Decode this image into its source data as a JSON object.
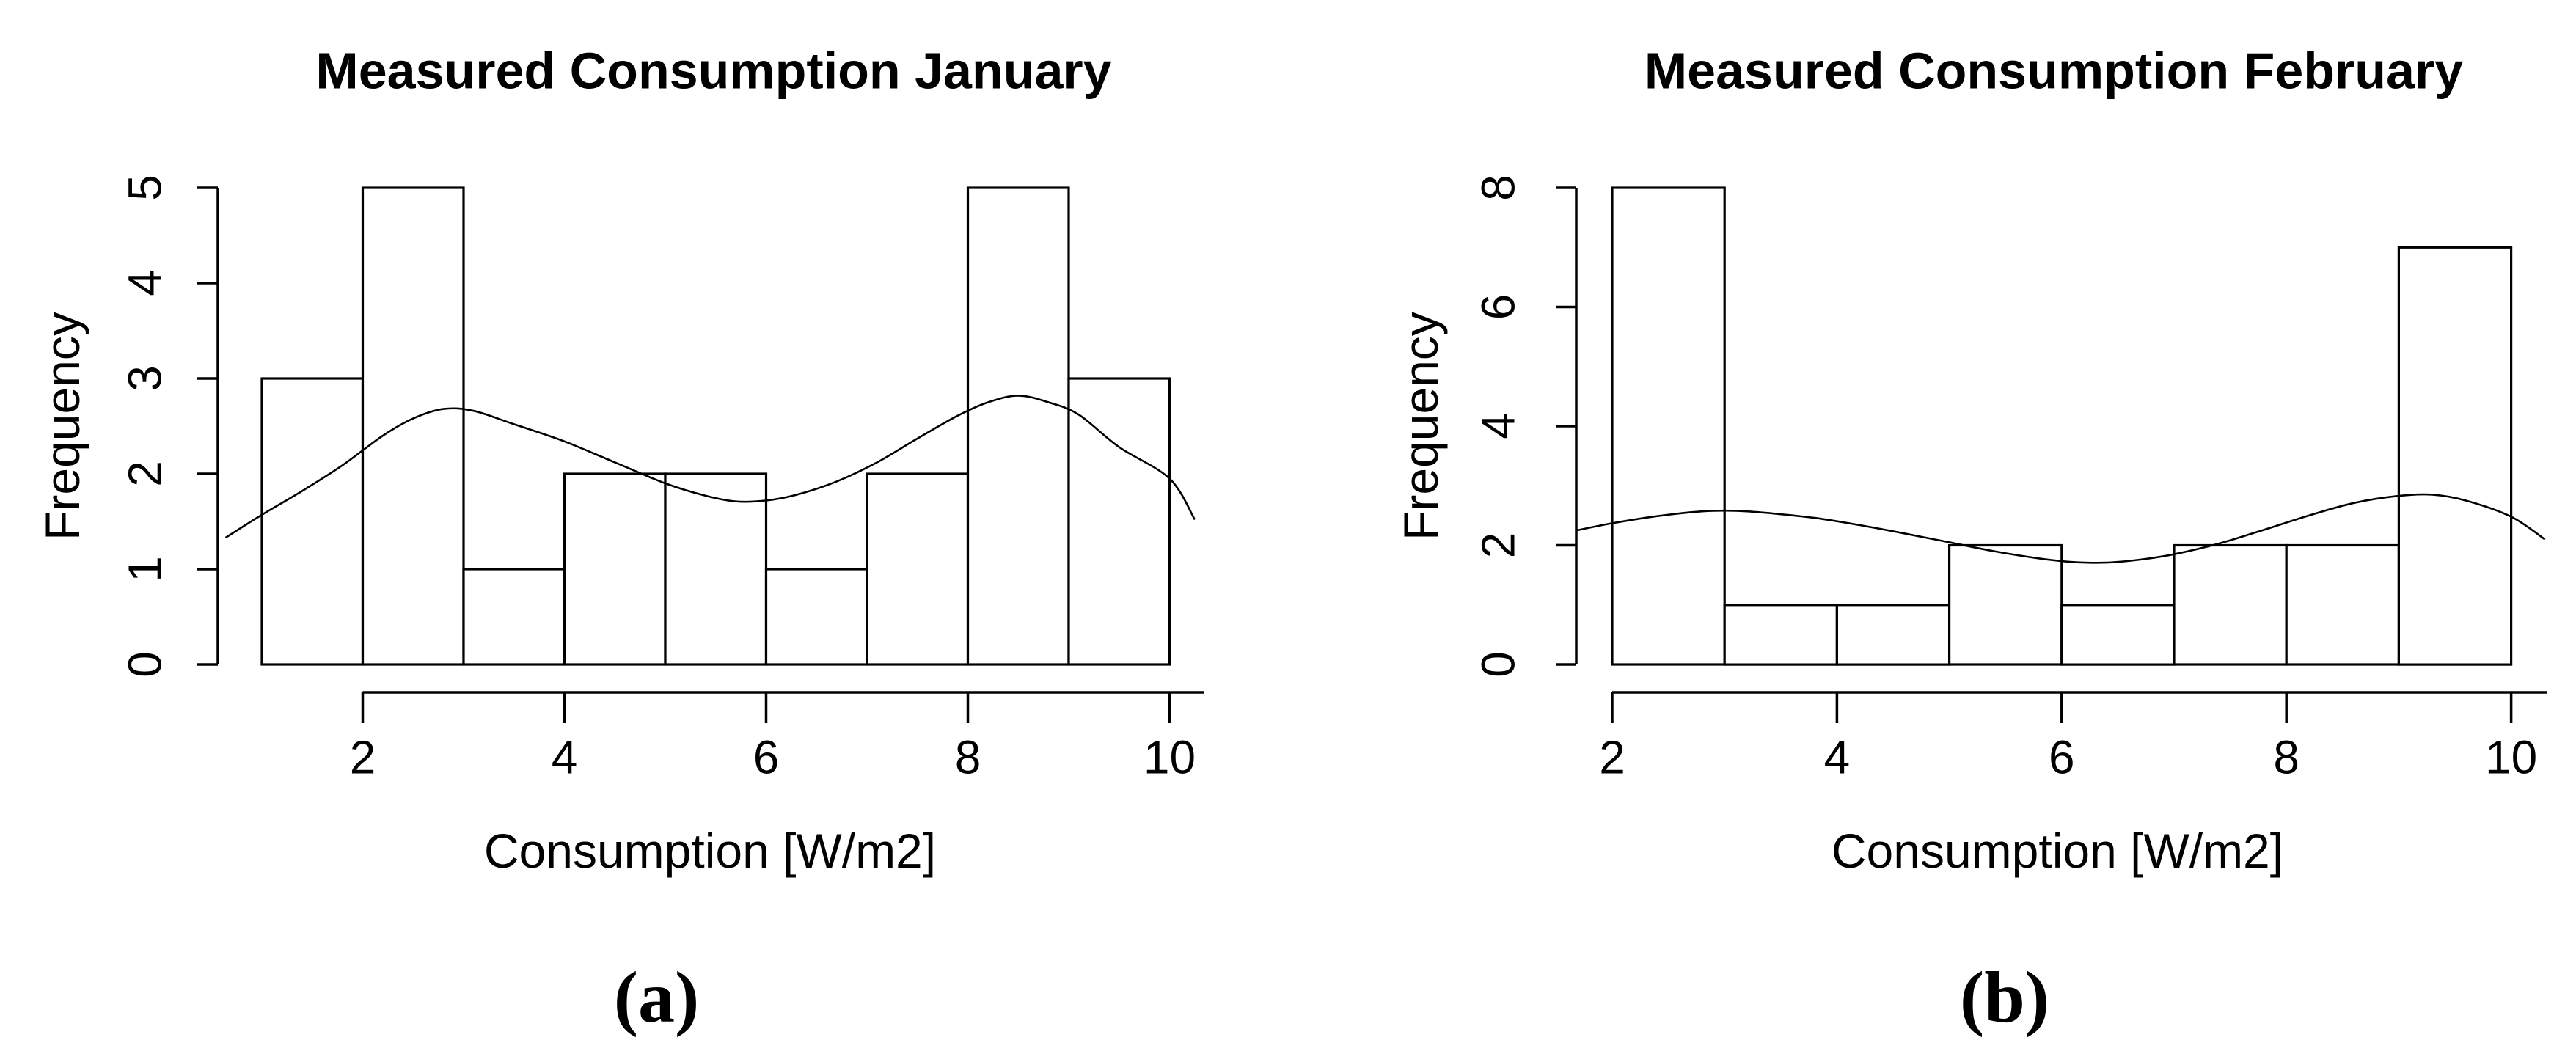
{
  "figure": {
    "background_color": "#ffffff",
    "ink_color": "#000000",
    "style": "R base graphics histogram, black and white, no gridlines"
  },
  "chart_data": [
    {
      "type": "bar",
      "subtype": "histogram-with-density-curve",
      "title": "Measured Consumption January",
      "xlabel": "Consumption [W/m2]",
      "ylabel": "Frequency",
      "caption": "(a)",
      "bin_edges": [
        1,
        2,
        3,
        4,
        5,
        6,
        7,
        8,
        9,
        10
      ],
      "counts": [
        3,
        5,
        1,
        2,
        2,
        1,
        2,
        5,
        3
      ],
      "x_ticks": [
        2,
        4,
        6,
        8,
        10
      ],
      "y_ticks": [
        0,
        1,
        2,
        3,
        4,
        5
      ],
      "xlim": [
        0.64,
        10.36
      ],
      "ylim": [
        0,
        5
      ],
      "grid": false,
      "legend": "none",
      "bar_fill": "#ffffff",
      "bar_stroke": "#000000",
      "density_curve": [
        [
          0.64,
          1.33
        ],
        [
          1.0,
          1.57
        ],
        [
          1.4,
          1.82
        ],
        [
          1.8,
          2.09
        ],
        [
          2.2,
          2.4
        ],
        [
          2.5,
          2.58
        ],
        [
          2.8,
          2.68
        ],
        [
          3.1,
          2.66
        ],
        [
          3.5,
          2.52
        ],
        [
          4.0,
          2.34
        ],
        [
          4.5,
          2.12
        ],
        [
          5.0,
          1.9
        ],
        [
          5.4,
          1.77
        ],
        [
          5.7,
          1.71
        ],
        [
          6.0,
          1.72
        ],
        [
          6.3,
          1.78
        ],
        [
          6.7,
          1.92
        ],
        [
          7.1,
          2.12
        ],
        [
          7.5,
          2.37
        ],
        [
          7.9,
          2.61
        ],
        [
          8.2,
          2.75
        ],
        [
          8.5,
          2.82
        ],
        [
          8.8,
          2.75
        ],
        [
          9.1,
          2.62
        ],
        [
          9.5,
          2.28
        ],
        [
          10.0,
          1.95
        ],
        [
          10.25,
          1.52
        ]
      ]
    },
    {
      "type": "bar",
      "subtype": "histogram-with-density-curve",
      "title": "Measured Consumption February",
      "xlabel": "Consumption [W/m2]",
      "ylabel": "Frequency",
      "caption": "(b)",
      "bin_edges": [
        2,
        3,
        4,
        5,
        6,
        7,
        8,
        9,
        10
      ],
      "counts": [
        8,
        1,
        1,
        2,
        1,
        2,
        2,
        7
      ],
      "x_ticks": [
        2,
        4,
        6,
        8,
        10
      ],
      "y_ticks": [
        0,
        2,
        4,
        6,
        8
      ],
      "xlim": [
        1.68,
        10.32
      ],
      "ylim": [
        0,
        8
      ],
      "grid": false,
      "legend": "none",
      "bar_fill": "#ffffff",
      "bar_stroke": "#000000",
      "density_curve": [
        [
          1.68,
          2.25
        ],
        [
          2.0,
          2.37
        ],
        [
          2.4,
          2.49
        ],
        [
          2.8,
          2.57
        ],
        [
          3.1,
          2.58
        ],
        [
          3.4,
          2.54
        ],
        [
          3.8,
          2.46
        ],
        [
          4.2,
          2.34
        ],
        [
          4.6,
          2.2
        ],
        [
          5.0,
          2.05
        ],
        [
          5.4,
          1.9
        ],
        [
          5.8,
          1.78
        ],
        [
          6.1,
          1.72
        ],
        [
          6.4,
          1.71
        ],
        [
          6.7,
          1.76
        ],
        [
          7.0,
          1.85
        ],
        [
          7.4,
          2.03
        ],
        [
          7.8,
          2.26
        ],
        [
          8.2,
          2.5
        ],
        [
          8.6,
          2.71
        ],
        [
          9.0,
          2.83
        ],
        [
          9.3,
          2.85
        ],
        [
          9.6,
          2.75
        ],
        [
          10.0,
          2.48
        ],
        [
          10.3,
          2.1
        ]
      ]
    }
  ]
}
